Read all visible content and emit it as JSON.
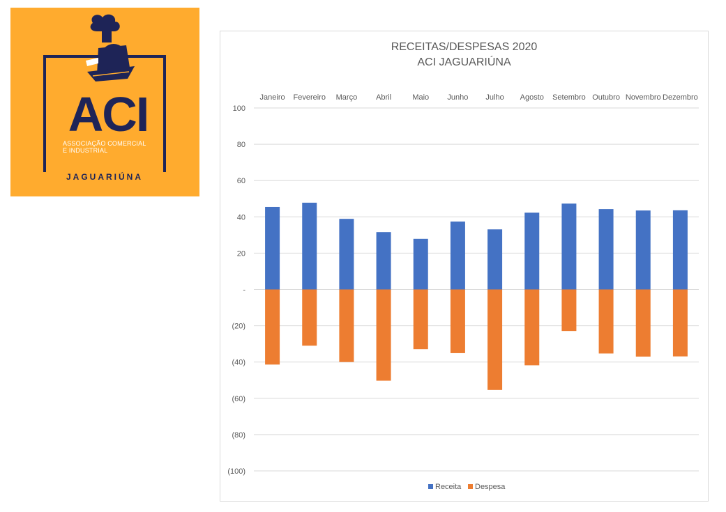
{
  "logo": {
    "main": "ACI",
    "sub_line1": "ASSOCIAÇÃO COMERCIAL",
    "sub_line2": "E INDUSTRIAL",
    "city": "JAGUARIÚNA",
    "bg_color": "#ffab2e",
    "ink_color": "#1e2457",
    "icon": "locomotive-icon"
  },
  "chart_data": {
    "type": "bar",
    "title_line1": "RECEITAS/DESPESAS 2020",
    "title_line2": "ACI JAGUARIÚNA",
    "categories": [
      "Janeiro",
      "Fevereiro",
      "Março",
      "Abril",
      "Maio",
      "Junho",
      "Julho",
      "Agosto",
      "Setembro",
      "Outubro",
      "Novembro",
      "Dezembro"
    ],
    "series": [
      {
        "name": "Receita",
        "color": "#4472c4",
        "values": [
          45.5,
          47.8,
          38.9,
          31.6,
          27.9,
          37.4,
          33.1,
          42.3,
          47.3,
          44.3,
          43.5,
          43.6
        ]
      },
      {
        "name": "Despesa",
        "color": "#ed7d31",
        "values": [
          -41.4,
          -31.0,
          -40.0,
          -50.3,
          -32.9,
          -35.1,
          -55.4,
          -41.8,
          -22.9,
          -35.3,
          -37.0,
          -36.9
        ]
      }
    ],
    "stacked": true,
    "ylim": [
      -100,
      100
    ],
    "yticks": [
      100,
      80,
      60,
      40,
      20,
      0,
      -20,
      -40,
      -60,
      -80,
      -100
    ],
    "ytick_labels": [
      "100",
      "80",
      "60",
      "40",
      "20",
      "-",
      "(20)",
      "(40)",
      "(60)",
      "(80)",
      "(100)"
    ],
    "category_axis_position": "top",
    "grid": true,
    "legend_position": "bottom"
  }
}
